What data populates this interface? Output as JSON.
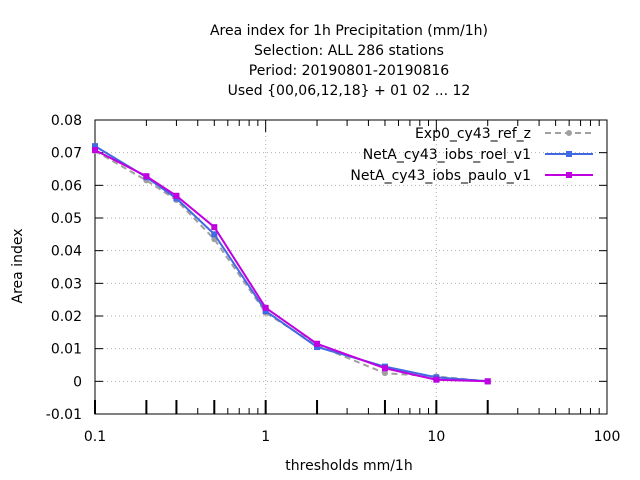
{
  "chart_data": {
    "type": "line",
    "title_lines": [
      "Area index  for 1h Precipitation (mm/1h)",
      "Selection: ALL     286 stations",
      "Period: 20190801-20190816",
      "Used {00,06,12,18} + 01 02 ... 12"
    ],
    "xlabel": "thresholds mm/1h",
    "ylabel": "Area index",
    "x_scale": "log",
    "xlim": [
      0.1,
      100
    ],
    "ylim": [
      -0.01,
      0.08
    ],
    "x_ticks": [
      {
        "value": 0.1,
        "label": "0.1"
      },
      {
        "value": 1,
        "label": "1"
      },
      {
        "value": 10,
        "label": "10"
      },
      {
        "value": 100,
        "label": "100"
      }
    ],
    "y_ticks": [
      {
        "value": -0.01,
        "label": "-0.01"
      },
      {
        "value": 0,
        "label": "0"
      },
      {
        "value": 0.01,
        "label": "0.01"
      },
      {
        "value": 0.02,
        "label": "0.02"
      },
      {
        "value": 0.03,
        "label": "0.03"
      },
      {
        "value": 0.04,
        "label": "0.04"
      },
      {
        "value": 0.05,
        "label": "0.05"
      },
      {
        "value": 0.06,
        "label": "0.06"
      },
      {
        "value": 0.07,
        "label": "0.07"
      },
      {
        "value": 0.08,
        "label": "0.08"
      }
    ],
    "threshold_marks": [
      0.1,
      0.2,
      0.3,
      0.5,
      1,
      2,
      5,
      10,
      20
    ],
    "grid": true,
    "legend_position": "top-right",
    "x": [
      0.1,
      0.2,
      0.3,
      0.5,
      1,
      2,
      5,
      10,
      20
    ],
    "series": [
      {
        "name": "Exp0_cy43_ref_z",
        "color": "#a0a0a0",
        "dash": "dashed",
        "marker": "circle",
        "values": [
          0.0705,
          0.0615,
          0.0555,
          0.0435,
          0.021,
          0.011,
          0.0025,
          0.0015,
          0.0
        ]
      },
      {
        "name": "NetA_cy43_iobs_roel_v1",
        "color": "#4169e1",
        "dash": "solid",
        "marker": "square",
        "values": [
          0.072,
          0.0625,
          0.056,
          0.045,
          0.0215,
          0.0105,
          0.0045,
          0.0012,
          0.0
        ]
      },
      {
        "name": "NetA_cy43_iobs_paulo_v1",
        "color": "#c000e0",
        "dash": "solid",
        "marker": "square",
        "values": [
          0.0708,
          0.0628,
          0.0568,
          0.0472,
          0.0225,
          0.0115,
          0.004,
          0.0005,
          0.0
        ]
      }
    ]
  }
}
